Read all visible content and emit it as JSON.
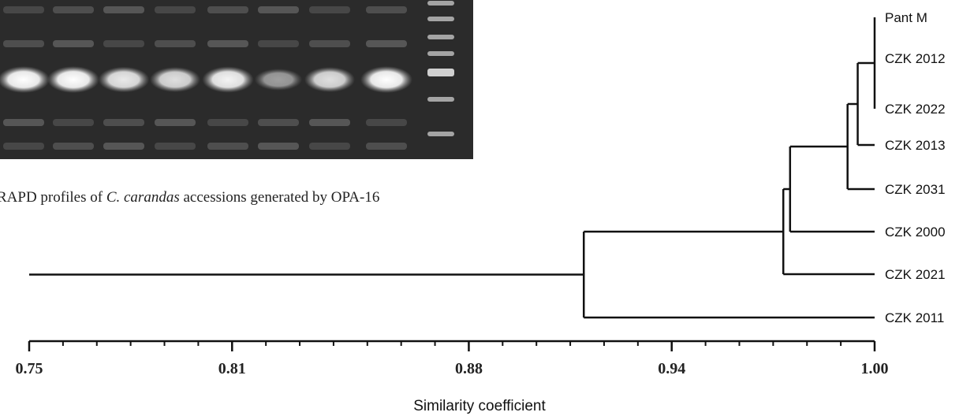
{
  "gel": {
    "caption_prefix": "RAPD profiles of ",
    "caption_species": "C. carandas",
    "caption_suffix": " accessions generated by OPA-16",
    "lane_intensity": [
      1.0,
      1.0,
      0.9,
      0.85,
      0.95,
      0.55,
      0.85,
      1.0
    ]
  },
  "dendrogram": {
    "leaves": [
      "Pant M",
      "CZK 2012",
      "CZK 2022",
      "CZK 2013",
      "CZK 2031",
      "CZK 2000",
      "CZK 2021",
      "CZK 2011"
    ],
    "clusters": [
      {
        "children": [
          0,
          1,
          2
        ],
        "similarity": 1.0
      },
      {
        "children": [
          8,
          3
        ],
        "similarity": 0.995
      },
      {
        "children": [
          9,
          4
        ],
        "similarity": 0.992
      },
      {
        "children": [
          10,
          5
        ],
        "similarity": 0.975
      },
      {
        "children": [
          11,
          6
        ],
        "similarity": 0.973
      },
      {
        "children": [
          12,
          7
        ],
        "similarity": 0.914
      }
    ],
    "axis": {
      "title": "Similarity coefficient",
      "min": 0.75,
      "max": 1.0,
      "ticks": [
        {
          "value": 0.75,
          "label": "0.75"
        },
        {
          "value": 0.81,
          "label": "0.81"
        },
        {
          "value": 0.88,
          "label": "0.88"
        },
        {
          "value": 0.94,
          "label": "0.94"
        },
        {
          "value": 1.0,
          "label": "1.00"
        }
      ]
    }
  }
}
